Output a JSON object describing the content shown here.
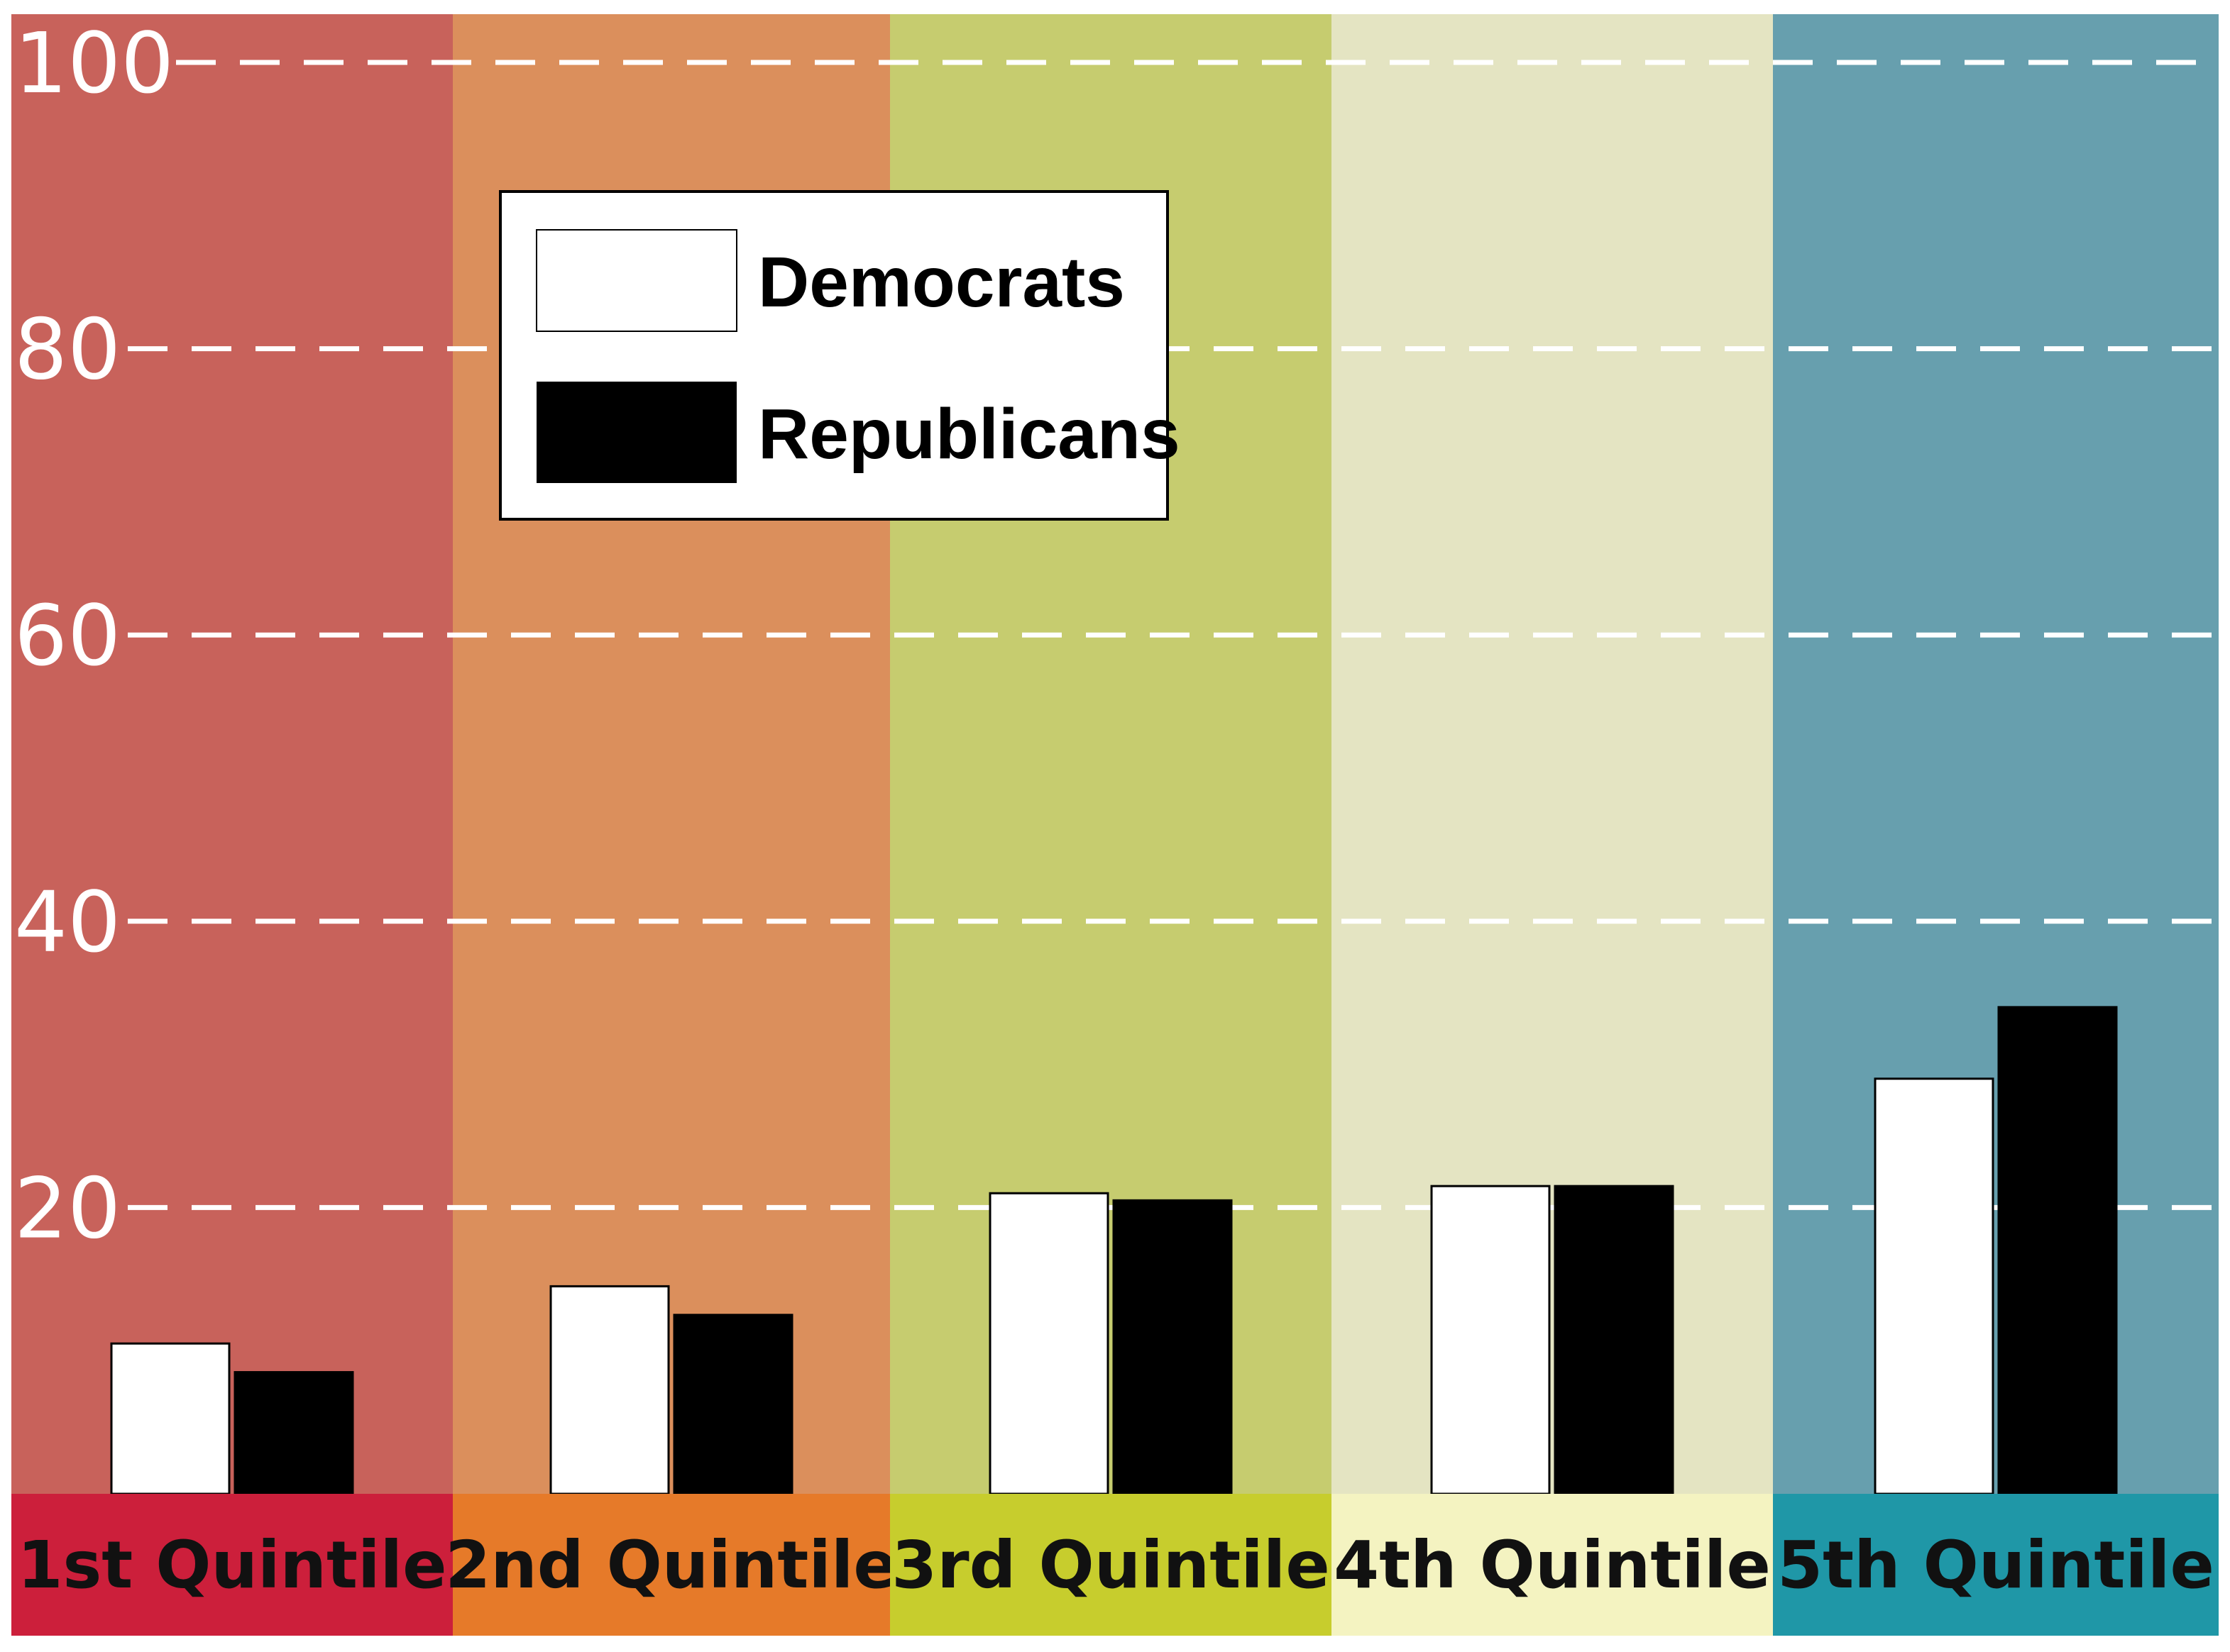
{
  "chart_data": {
    "type": "bar",
    "title": "",
    "xlabel": "",
    "ylabel": "",
    "ylim": [
      0,
      100
    ],
    "yticks": [
      20,
      40,
      60,
      80,
      100
    ],
    "grid": "dashed white horizontal lines at each tick",
    "legend_position": "upper-left",
    "categories": [
      "1st  Quintile",
      "2nd Quintile",
      "3rd Quintile",
      "4th Quintile",
      "5th Quintile"
    ],
    "series": [
      {
        "name": "Democrats",
        "color": "#ffffff",
        "values": [
          10.5,
          14.5,
          21,
          21.5,
          29
        ]
      },
      {
        "name": "Republicans",
        "color": "#000000",
        "values": [
          8.5,
          12.5,
          20.5,
          21.5,
          34
        ]
      }
    ],
    "band_colors": [
      "#c8625b",
      "#db8f5c",
      "#c6cc6f",
      "#e4e4c2",
      "#679fae"
    ],
    "label_bar_colors": [
      "#cc1f3b",
      "#e67a29",
      "#c7cd2d",
      "#f4f3c1",
      "#1f97a7"
    ]
  }
}
